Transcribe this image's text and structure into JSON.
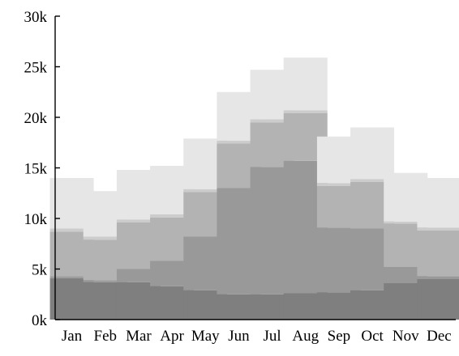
{
  "chart_data": {
    "type": "bar",
    "stacked": true,
    "title": "",
    "xlabel": "",
    "ylabel": "",
    "ylim": [
      0,
      30000
    ],
    "y_ticks": [
      0,
      5000,
      10000,
      15000,
      20000,
      25000,
      30000
    ],
    "y_tick_labels": [
      "0k",
      "5k",
      "10k",
      "15k",
      "20k",
      "25k",
      "30k"
    ],
    "grid": false,
    "legend": "none",
    "categories": [
      "Jan",
      "Feb",
      "Mar",
      "Apr",
      "May",
      "Jun",
      "Jul",
      "Aug",
      "Sep",
      "Oct",
      "Nov",
      "Dec"
    ],
    "series": [
      {
        "color": "#7f7f7f",
        "values": [
          4100,
          3700,
          3700,
          3300,
          2900,
          2500,
          2500,
          2600,
          2700,
          2900,
          3600,
          4000
        ]
      },
      {
        "color": "#999999",
        "values": [
          200,
          200,
          1300,
          2500,
          5300,
          10500,
          12600,
          13100,
          6400,
          6100,
          1600,
          300
        ]
      },
      {
        "color": "#b3b3b3",
        "values": [
          4400,
          4000,
          4600,
          4300,
          4400,
          4400,
          4400,
          4700,
          4100,
          4600,
          4300,
          4500
        ]
      },
      {
        "color": "#cccccc",
        "values": [
          300,
          300,
          300,
          300,
          300,
          300,
          300,
          300,
          300,
          300,
          200,
          300
        ]
      },
      {
        "color": "#e6e6e6",
        "values": [
          5000,
          4500,
          4900,
          4800,
          5000,
          4800,
          4900,
          5200,
          4600,
          5100,
          4800,
          4900
        ]
      }
    ]
  }
}
